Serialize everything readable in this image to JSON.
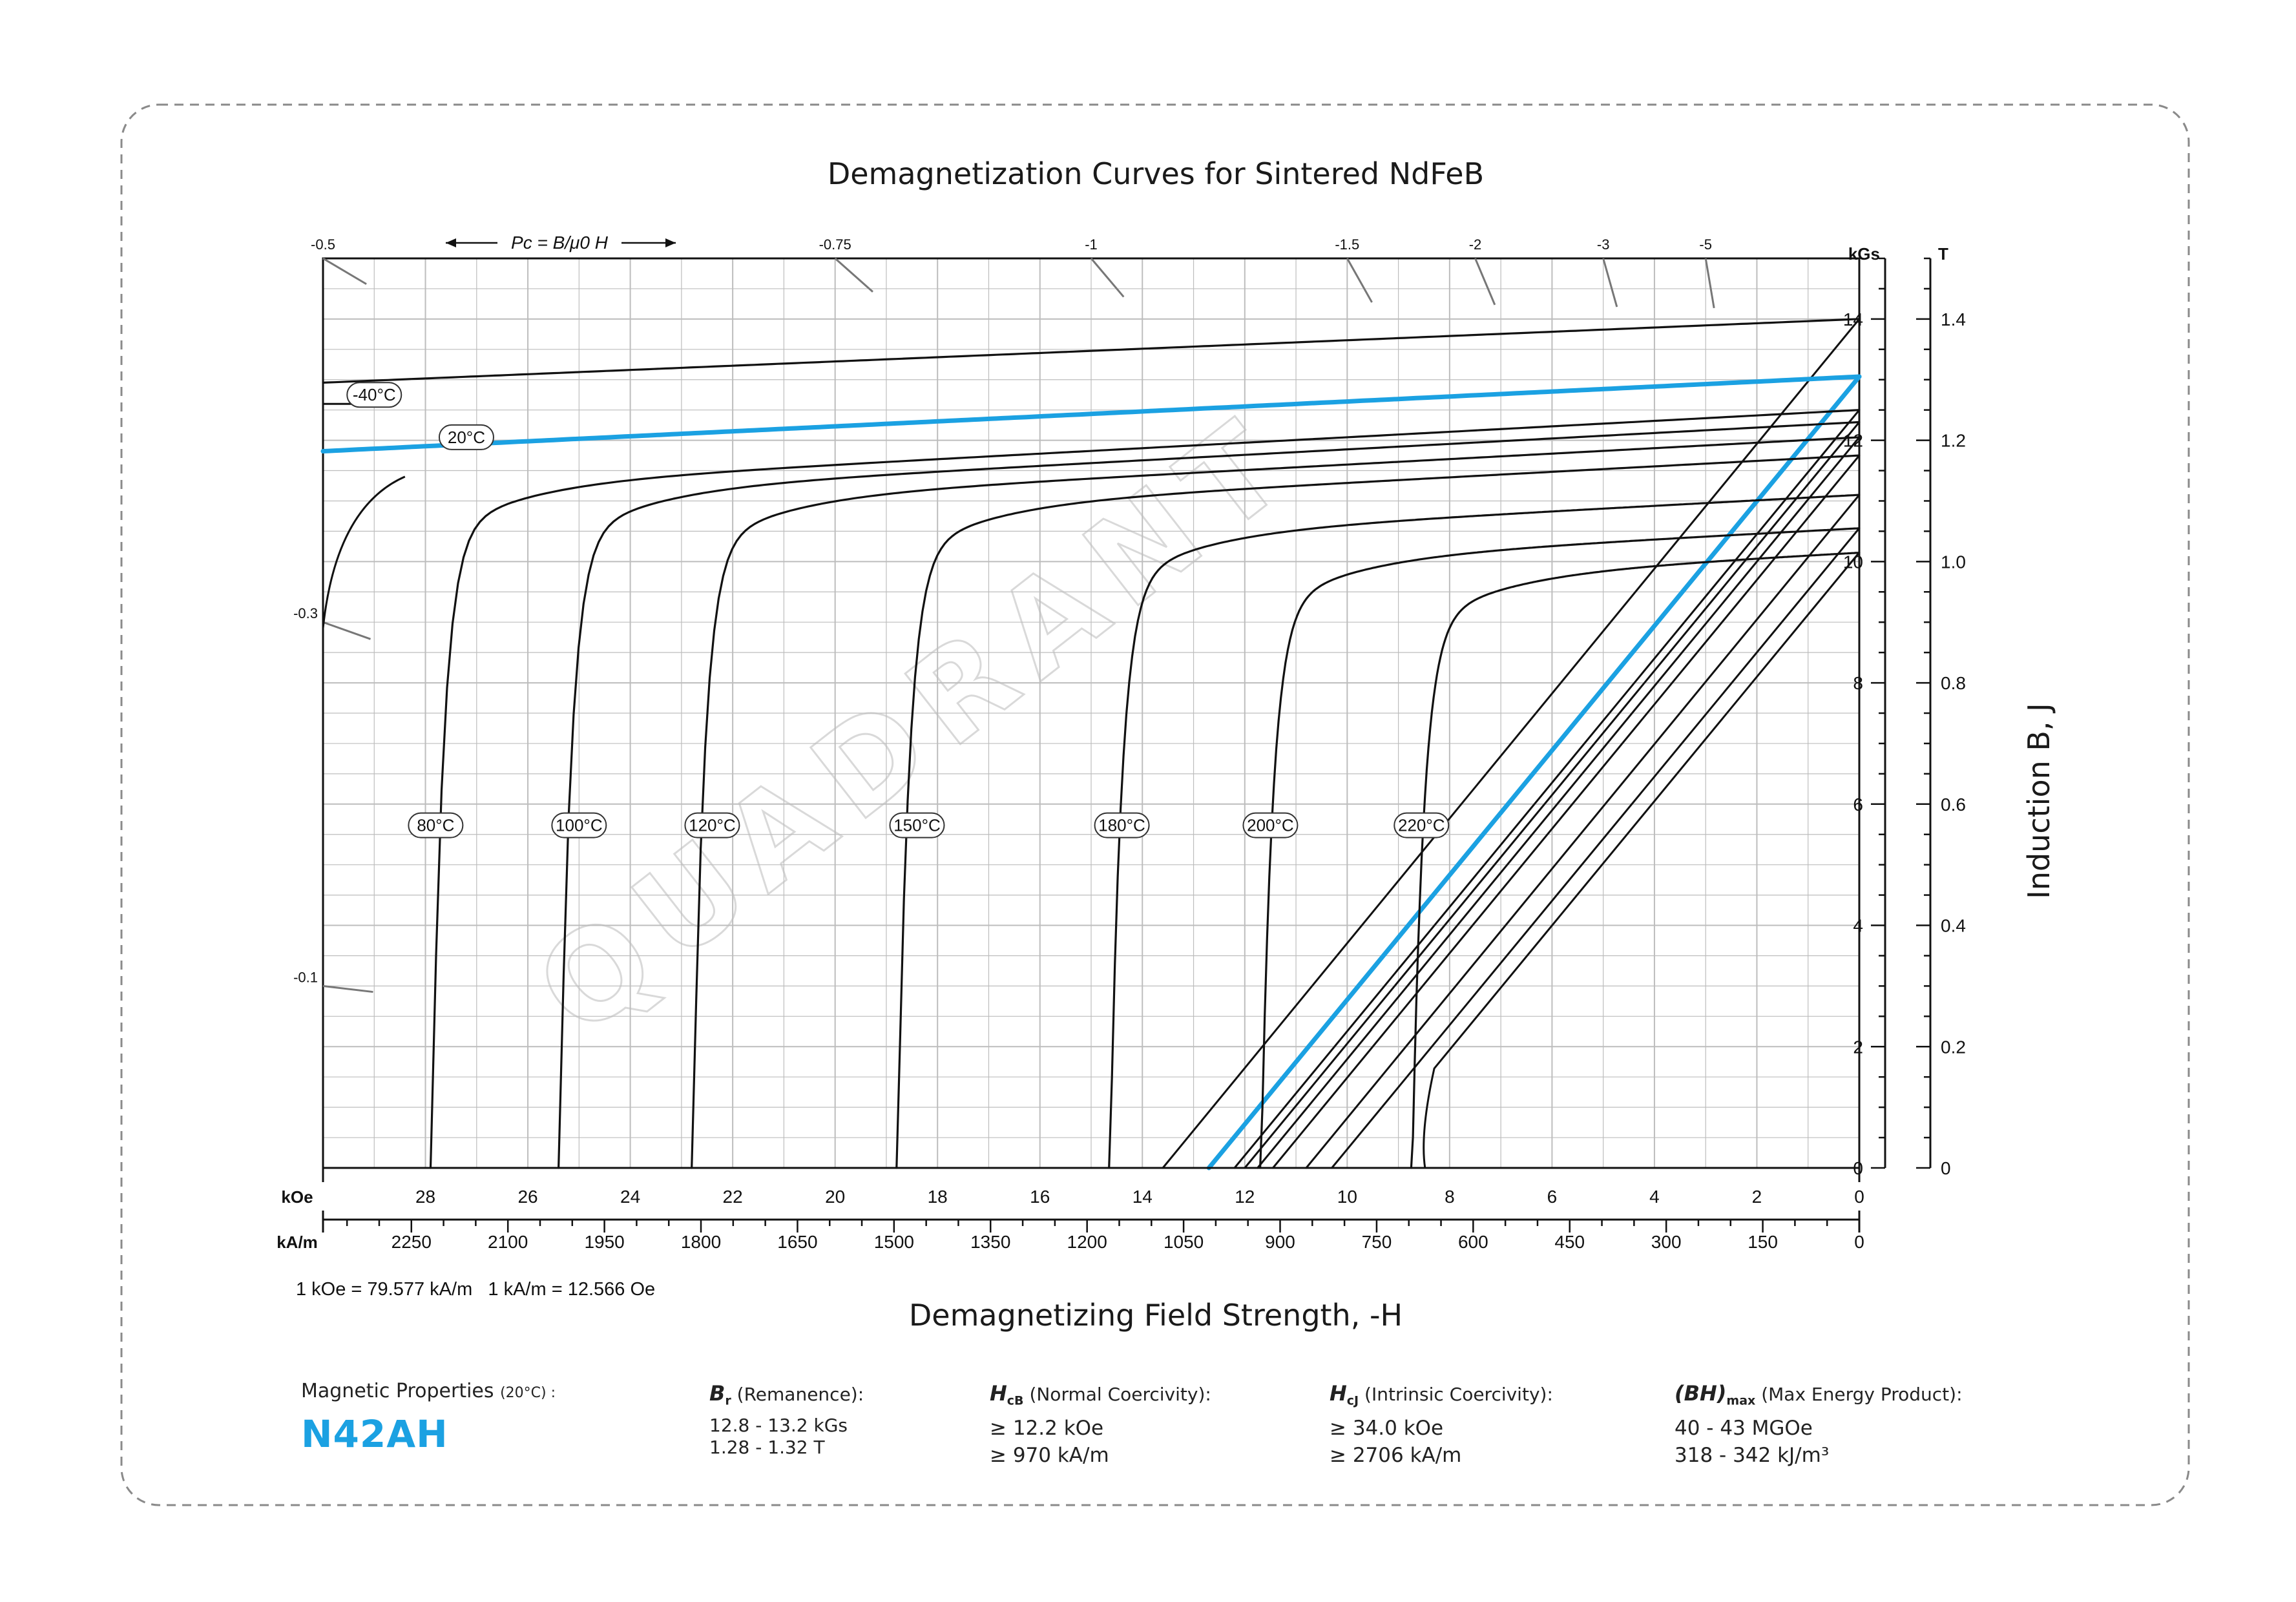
{
  "chart_data": {
    "type": "line",
    "title": "Demagnetization Curves for Sintered NdFeB",
    "xlabel": "Demagnetizing Field Strength, -H",
    "ylabel": "Induction B, J",
    "x_unit_primary": "kOe",
    "x_unit_secondary": "kA/m",
    "y_unit_primary": "kGs",
    "y_unit_secondary": "T",
    "xlim": [
      30,
      0
    ],
    "ylim": [
      0,
      15
    ],
    "x_ticks_koe": [
      "28",
      "26",
      "24",
      "22",
      "20",
      "18",
      "16",
      "14",
      "12",
      "10",
      "8",
      "6",
      "4",
      "2",
      "0"
    ],
    "x_ticks_kam": [
      "2250",
      "2100",
      "1950",
      "1800",
      "1650",
      "1500",
      "1350",
      "1200",
      "1050",
      "900",
      "750",
      "600",
      "450",
      "300",
      "150",
      "0"
    ],
    "y_ticks_kgs": [
      "0",
      "2",
      "4",
      "6",
      "8",
      "10",
      "12",
      "14"
    ],
    "y_ticks_t": [
      "0",
      "0.2",
      "0.4",
      "0.6",
      "0.8",
      "1.0",
      "1.2",
      "1.4"
    ],
    "conversion_note": "1 kOe = 79.577 kA/m   1 kA/m = 12.566 Oe",
    "pc_label": "Pc = B/μ0 H",
    "pc_ticks": [
      {
        "label": "-0.5",
        "pc": 0.5
      },
      {
        "label": "-0.75",
        "pc": 0.75
      },
      {
        "label": "-1",
        "pc": 1
      },
      {
        "label": "-1.5",
        "pc": 1.5
      },
      {
        "label": "-2",
        "pc": 2
      },
      {
        "label": "-3",
        "pc": 3
      },
      {
        "label": "-5",
        "pc": 5
      },
      {
        "label": "-0.3",
        "pc": 0.3
      },
      {
        "label": "-0.1",
        "pc": 0.1
      }
    ],
    "j_curves": [
      {
        "name": "-40°C",
        "br": 14.0,
        "slope": 0.035,
        "label_at": [
          29.0,
          12.75
        ],
        "highlight": false
      },
      {
        "name": "20°C",
        "br": 13.05,
        "slope": 0.041,
        "label_at": [
          27.2,
          12.05
        ],
        "highlight": true
      },
      {
        "name": "80°C",
        "br": 12.5,
        "slope": 0.045,
        "hcj": 27.9,
        "label_at": [
          27.8,
          5.65
        ],
        "highlight": false
      },
      {
        "name": "100°C",
        "br": 12.3,
        "slope": 0.045,
        "hcj": 25.4,
        "label_at": [
          25.0,
          5.65
        ],
        "highlight": false
      },
      {
        "name": "120°C",
        "br": 12.05,
        "slope": 0.045,
        "hcj": 22.8,
        "label_at": [
          22.4,
          5.65
        ],
        "highlight": false
      },
      {
        "name": "150°C",
        "br": 11.75,
        "slope": 0.045,
        "hcj": 18.8,
        "label_at": [
          18.4,
          5.65
        ],
        "highlight": false
      },
      {
        "name": "180°C",
        "br": 11.1,
        "slope": 0.045,
        "hcj": 14.65,
        "label_at": [
          14.4,
          5.65
        ],
        "highlight": false
      },
      {
        "name": "200°C",
        "br": 10.55,
        "slope": 0.045,
        "hcj": 11.7,
        "label_at": [
          11.5,
          5.65
        ],
        "highlight": false
      },
      {
        "name": "220°C",
        "br": 10.15,
        "slope": 0.045,
        "hcj": 8.75,
        "label_at": [
          8.55,
          5.65
        ],
        "highlight": false
      }
    ],
    "b_curves": [
      {
        "name": "-40°C",
        "br": 14.0,
        "hcb": 13.6
      },
      {
        "name": "20°C",
        "br": 13.05,
        "hcb": 12.7,
        "highlight": true
      },
      {
        "name": "80°C",
        "br": 12.5,
        "hcb": 12.2
      },
      {
        "name": "100°C",
        "br": 12.3,
        "hcb": 12.0
      },
      {
        "name": "120°C",
        "br": 12.05,
        "hcb": 11.75
      },
      {
        "name": "150°C",
        "br": 11.75,
        "hcb": 11.45
      },
      {
        "name": "180°C",
        "br": 11.1,
        "hcb": 10.8
      },
      {
        "name": "200°C",
        "br": 10.55,
        "hcb": 10.3
      },
      {
        "name": "220°C",
        "br": 10.15,
        "hcb": 9.9,
        "knee": 8.3
      }
    ],
    "grid": true,
    "watermark": "QUADRANT",
    "colors": {
      "highlight": "#1ba1e2",
      "curve": "#111111",
      "grid": "#bdbdbd"
    }
  },
  "properties": {
    "heading": "Magnetic Properties",
    "heading_note": "(20°C) :",
    "grade": "N42AH",
    "br": {
      "symbol": "B",
      "sub": "r",
      "name": "(Remanence):",
      "line1": "12.8 - 13.2 kGs",
      "line2": "1.28 - 1.32 T"
    },
    "hcb": {
      "symbol": "H",
      "sub": "cB",
      "name": "(Normal Coercivity):",
      "line1": "≥ 12.2 kOe",
      "line2": "≥ 970 kA/m"
    },
    "hcj": {
      "symbol": "H",
      "sub": "cJ",
      "name": "(Intrinsic Coercivity):",
      "line1": "≥ 34.0 kOe",
      "line2": "≥ 2706 kA/m"
    },
    "bh": {
      "symbol": "(BH)",
      "sub": "max",
      "name": "(Max Energy Product):",
      "line1": "40 - 43 MGOe",
      "line2": "318 - 342 kJ/m³"
    }
  }
}
